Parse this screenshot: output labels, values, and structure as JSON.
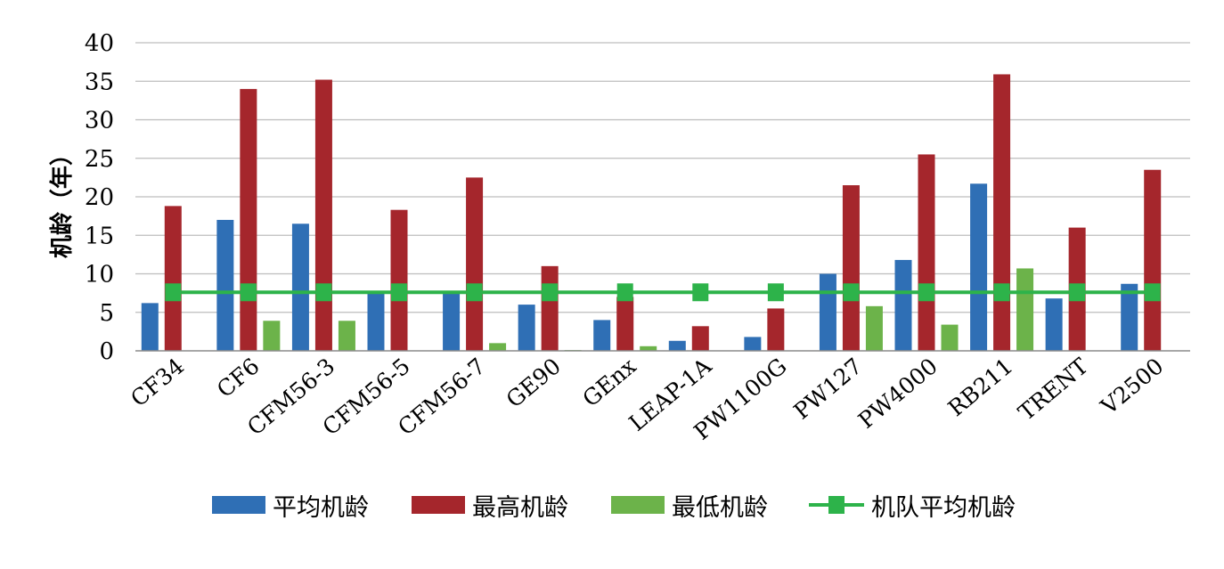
{
  "chart_data": {
    "type": "bar",
    "title": "",
    "xlabel": "",
    "ylabel": "机龄（年）",
    "ylim": [
      0,
      40
    ],
    "yticks": [
      "0",
      "5",
      "10",
      "15",
      "20",
      "25",
      "30",
      "35",
      "40"
    ],
    "grid": true,
    "legend_position": "bottom",
    "categories": [
      "CF34",
      "CF6",
      "CFM56-3",
      "CFM56-5",
      "CFM56-7",
      "GE90",
      "GEnx",
      "LEAP-1A",
      "PW1100G",
      "PW127",
      "PW4000",
      "RB211",
      "TRENT",
      "V2500"
    ],
    "series": [
      {
        "name": "平均机龄",
        "color": "#2f6fb5",
        "values": [
          6.2,
          17.0,
          16.5,
          7.8,
          7.6,
          6.0,
          4.0,
          1.3,
          1.8,
          10.0,
          11.8,
          21.7,
          6.8,
          8.7
        ]
      },
      {
        "name": "最高机龄",
        "color": "#a5262c",
        "values": [
          18.8,
          34.0,
          35.2,
          18.3,
          22.5,
          11.0,
          7.0,
          3.2,
          5.5,
          21.5,
          25.5,
          35.9,
          16.0,
          23.5
        ]
      },
      {
        "name": "最低机龄",
        "color": "#6cb34a",
        "values": [
          0,
          3.9,
          3.9,
          0,
          1.0,
          0.1,
          0.6,
          0,
          0,
          5.8,
          3.4,
          10.7,
          0,
          0
        ]
      }
    ],
    "line_series": {
      "name": "机队平均机龄",
      "color": "#2db34a",
      "value": 7.6
    }
  },
  "legend": {
    "items": [
      {
        "label": "平均机龄",
        "color": "#2f6fb5"
      },
      {
        "label": "最高机龄",
        "color": "#a5262c"
      },
      {
        "label": "最低机龄",
        "color": "#6cb34a"
      },
      {
        "label": "机队平均机龄",
        "color": "#2db34a"
      }
    ]
  }
}
